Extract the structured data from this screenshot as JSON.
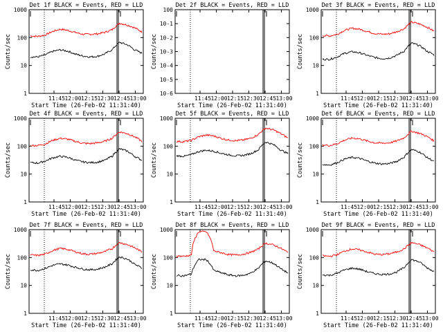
{
  "chart_data": [
    {
      "type": "line",
      "title": "Det 1f BLACK = Events, RED = LLD",
      "xlabel": "Start Time (26-Feb-02 11:31:40)",
      "ylabel": "Counts/sec",
      "x_ticks": [
        "11:45",
        "12:00",
        "12:15",
        "12:30",
        "12:45",
        "13:00"
      ],
      "y_ticks": [
        "1",
        "10",
        "100",
        "1000"
      ],
      "ylim": [
        1,
        1200
      ],
      "y_scale": "log",
      "series": [
        {
          "color": "#ff0000",
          "values": [
            130,
            125,
            140,
            190,
            230,
            210,
            175,
            150,
            150,
            155,
            175,
            220,
            380,
            330,
            260,
            180
          ]
        },
        {
          "color": "#000000",
          "values": [
            22,
            22,
            26,
            35,
            40,
            36,
            28,
            24,
            22,
            23,
            28,
            40,
            75,
            62,
            40,
            30
          ]
        }
      ]
    },
    {
      "type": "line",
      "title": "Det 2f BLACK = Events, RED = LLD",
      "xlabel": "Start Time (26-Feb-02 11:31:40)",
      "ylabel": "Counts/sec",
      "x_ticks": [
        "11:45",
        "12:00",
        "12:15",
        "12:30",
        "12:45",
        "13:00"
      ],
      "y_ticks": [
        "10-6",
        "10-5",
        "10-4",
        "10-3",
        "10-2",
        "10-1",
        "100"
      ],
      "ylim": [
        1e-06,
        1
      ],
      "y_scale": "log",
      "series": []
    },
    {
      "type": "line",
      "title": "Det 3f BLACK = Events, RED = LLD",
      "xlabel": "Start Time (26-Feb-02 11:31:40)",
      "ylabel": "Counts/sec",
      "x_ticks": [
        "11:45",
        "12:00",
        "12:15",
        "12:30",
        "12:45",
        "13:00"
      ],
      "y_ticks": [
        "1",
        "10",
        "100",
        "1000"
      ],
      "ylim": [
        1,
        1200
      ],
      "y_scale": "log",
      "series": [
        {
          "color": "#ff0000",
          "values": [
            135,
            130,
            150,
            210,
            250,
            230,
            190,
            160,
            150,
            155,
            185,
            240,
            420,
            360,
            280,
            190
          ]
        },
        {
          "color": "#000000",
          "values": [
            18,
            18,
            22,
            30,
            34,
            31,
            25,
            21,
            19,
            20,
            25,
            36,
            70,
            58,
            36,
            26
          ]
        }
      ]
    },
    {
      "type": "line",
      "title": "Det 4f BLACK = Events, RED = LLD",
      "xlabel": "Start Time (26-Feb-02 11:31:40)",
      "ylabel": "Counts/sec",
      "x_ticks": [
        "11:45",
        "12:00",
        "12:15",
        "12:30",
        "12:45",
        "13:00"
      ],
      "y_ticks": [
        "1",
        "10",
        "100",
        "1000"
      ],
      "ylim": [
        1,
        1200
      ],
      "y_scale": "log",
      "series": [
        {
          "color": "#ff0000",
          "values": [
            120,
            120,
            135,
            185,
            220,
            205,
            170,
            145,
            140,
            150,
            170,
            220,
            380,
            330,
            250,
            170
          ]
        },
        {
          "color": "#000000",
          "values": [
            28,
            27,
            32,
            42,
            48,
            44,
            35,
            30,
            28,
            29,
            34,
            48,
            90,
            75,
            48,
            34
          ]
        }
      ]
    },
    {
      "type": "line",
      "title": "Det 5f BLACK = Events, RED = LLD",
      "xlabel": "Start Time (26-Feb-02 11:31:40)",
      "ylabel": "Counts/sec",
      "x_ticks": [
        "11:45",
        "12:00",
        "12:15",
        "12:30",
        "12:45",
        "13:00"
      ],
      "y_ticks": [
        "1",
        "10",
        "100",
        "1000"
      ],
      "ylim": [
        1,
        1200
      ],
      "y_scale": "log",
      "series": [
        {
          "color": "#ff0000",
          "values": [
            170,
            165,
            185,
            250,
            290,
            270,
            220,
            190,
            180,
            190,
            220,
            300,
            520,
            450,
            330,
            220
          ]
        },
        {
          "color": "#000000",
          "values": [
            50,
            48,
            55,
            72,
            80,
            74,
            62,
            54,
            50,
            52,
            60,
            82,
            160,
            130,
            82,
            60
          ]
        }
      ]
    },
    {
      "type": "line",
      "title": "Det 6f BLACK = Events, RED = LLD",
      "xlabel": "Start Time (26-Feb-02 11:31:40)",
      "ylabel": "Counts/sec",
      "x_ticks": [
        "11:45",
        "12:00",
        "12:15",
        "12:30",
        "12:45",
        "13:00"
      ],
      "y_ticks": [
        "1",
        "10",
        "100",
        "1000"
      ],
      "ylim": [
        1,
        1200
      ],
      "y_scale": "log",
      "series": [
        {
          "color": "#ff0000",
          "values": [
            125,
            120,
            140,
            190,
            225,
            210,
            175,
            150,
            145,
            150,
            175,
            230,
            400,
            340,
            260,
            175
          ]
        },
        {
          "color": "#000000",
          "values": [
            24,
            23,
            28,
            38,
            44,
            40,
            32,
            27,
            25,
            26,
            31,
            45,
            85,
            70,
            44,
            31
          ]
        }
      ]
    },
    {
      "type": "line",
      "title": "Det 7f BLACK = Events, RED = LLD",
      "xlabel": "Start Time (26-Feb-02 11:31:40)",
      "ylabel": "Counts/sec",
      "x_ticks": [
        "11:45",
        "12:00",
        "12:15",
        "12:30",
        "12:45",
        "13:00"
      ],
      "y_ticks": [
        "1",
        "10",
        "100",
        "1000"
      ],
      "ylim": [
        1,
        1200
      ],
      "y_scale": "log",
      "series": [
        {
          "color": "#ff0000",
          "values": [
            140,
            135,
            150,
            205,
            245,
            225,
            185,
            155,
            150,
            160,
            185,
            240,
            400,
            340,
            260,
            180
          ]
        },
        {
          "color": "#000000",
          "values": [
            40,
            38,
            45,
            58,
            66,
            60,
            50,
            43,
            40,
            42,
            50,
            66,
            120,
            100,
            64,
            46
          ]
        }
      ]
    },
    {
      "type": "line",
      "title": "Det 8f BLACK = Events, RED = LLD",
      "xlabel": "Start Time (26-Feb-02 11:31:40)",
      "ylabel": "Counts/sec",
      "x_ticks": [
        "11:45",
        "12:00",
        "12:15",
        "12:30",
        "12:45",
        "13:00"
      ],
      "y_ticks": [
        "1",
        "10",
        "100",
        "1000"
      ],
      "ylim": [
        1,
        1200
      ],
      "y_scale": "log",
      "series": [
        {
          "color": "#ff0000",
          "values": [
            130,
            125,
            140,
            1000,
            1000,
            200,
            170,
            145,
            140,
            150,
            175,
            230,
            380,
            330,
            250,
            170
          ]
        },
        {
          "color": "#000000",
          "values": [
            25,
            24,
            28,
            95,
            95,
            38,
            31,
            26,
            24,
            25,
            30,
            44,
            85,
            70,
            44,
            30
          ]
        }
      ]
    },
    {
      "type": "line",
      "title": "Det 9f BLACK = Events, RED = LLD",
      "xlabel": "Start Time (26-Feb-02 11:31:40)",
      "ylabel": "Counts/sec",
      "x_ticks": [
        "11:45",
        "12:00",
        "12:15",
        "12:30",
        "12:45",
        "13:00"
      ],
      "y_ticks": [
        "1",
        "10",
        "100",
        "1000"
      ],
      "ylim": [
        1,
        1200
      ],
      "y_scale": "log",
      "series": [
        {
          "color": "#ff0000",
          "values": [
            130,
            125,
            145,
            195,
            235,
            215,
            180,
            150,
            145,
            155,
            180,
            235,
            400,
            340,
            260,
            180
          ]
        },
        {
          "color": "#000000",
          "values": [
            26,
            25,
            30,
            40,
            46,
            42,
            34,
            29,
            27,
            28,
            33,
            48,
            95,
            78,
            48,
            34
          ]
        }
      ]
    }
  ]
}
